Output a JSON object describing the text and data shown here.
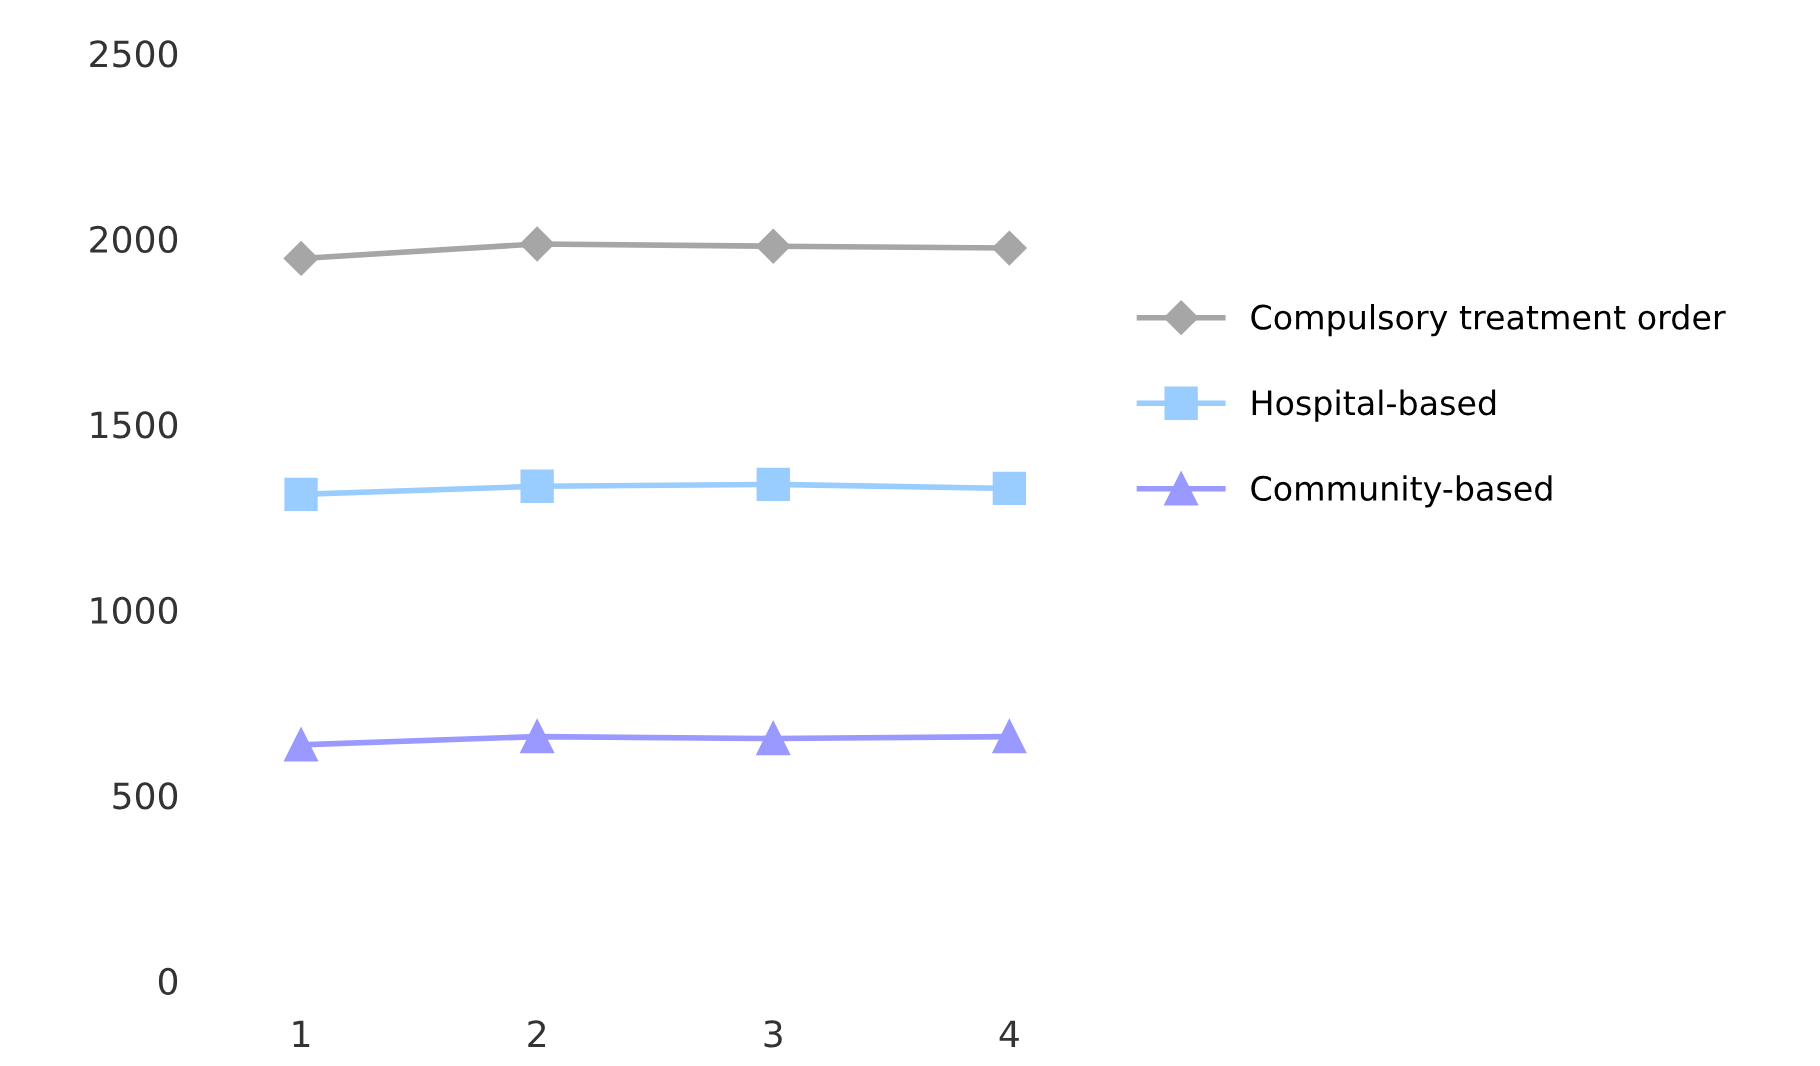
{
  "chart_data": {
    "type": "line",
    "categories": [
      "1",
      "2",
      "3",
      "4"
    ],
    "series": [
      {
        "name": "Compulsory treatment order",
        "color": "#a6a6a6",
        "marker": "diamond",
        "values": [
          1947,
          1986,
          1980,
          1975
        ]
      },
      {
        "name": "Hospital-based",
        "color": "#99ccff",
        "marker": "square",
        "values": [
          1311,
          1333,
          1338,
          1327
        ]
      },
      {
        "name": "Community-based",
        "color": "#9999ff",
        "marker": "triangle",
        "values": [
          636,
          658,
          653,
          658
        ]
      }
    ],
    "ylim": [
      0,
      2500
    ],
    "yticks": [
      0,
      500,
      1000,
      1500,
      2000,
      2500
    ],
    "grid": false,
    "legend": "right",
    "line_style": "solid"
  }
}
